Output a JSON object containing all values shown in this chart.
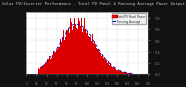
{
  "title": "Solar PV/Inverter Performance - Total PV Panel & Running Average Power Output",
  "bg_color": "#111111",
  "plot_bg_color": "#ffffff",
  "grid_color": "#aaaaaa",
  "bar_color": "#dd0000",
  "bar_edge_color": "#dd0000",
  "avg_line_color": "#0000cc",
  "title_color": "#cccccc",
  "tick_color": "#888888",
  "right_tick_color": "#888888",
  "n_bars": 200,
  "ylim": [
    0,
    1.1
  ],
  "legend_pv_label": "Total PV Panel Power",
  "legend_avg_label": "Running Average",
  "legend_pv_color": "#dd0000",
  "legend_avg_color": "#0000cc"
}
